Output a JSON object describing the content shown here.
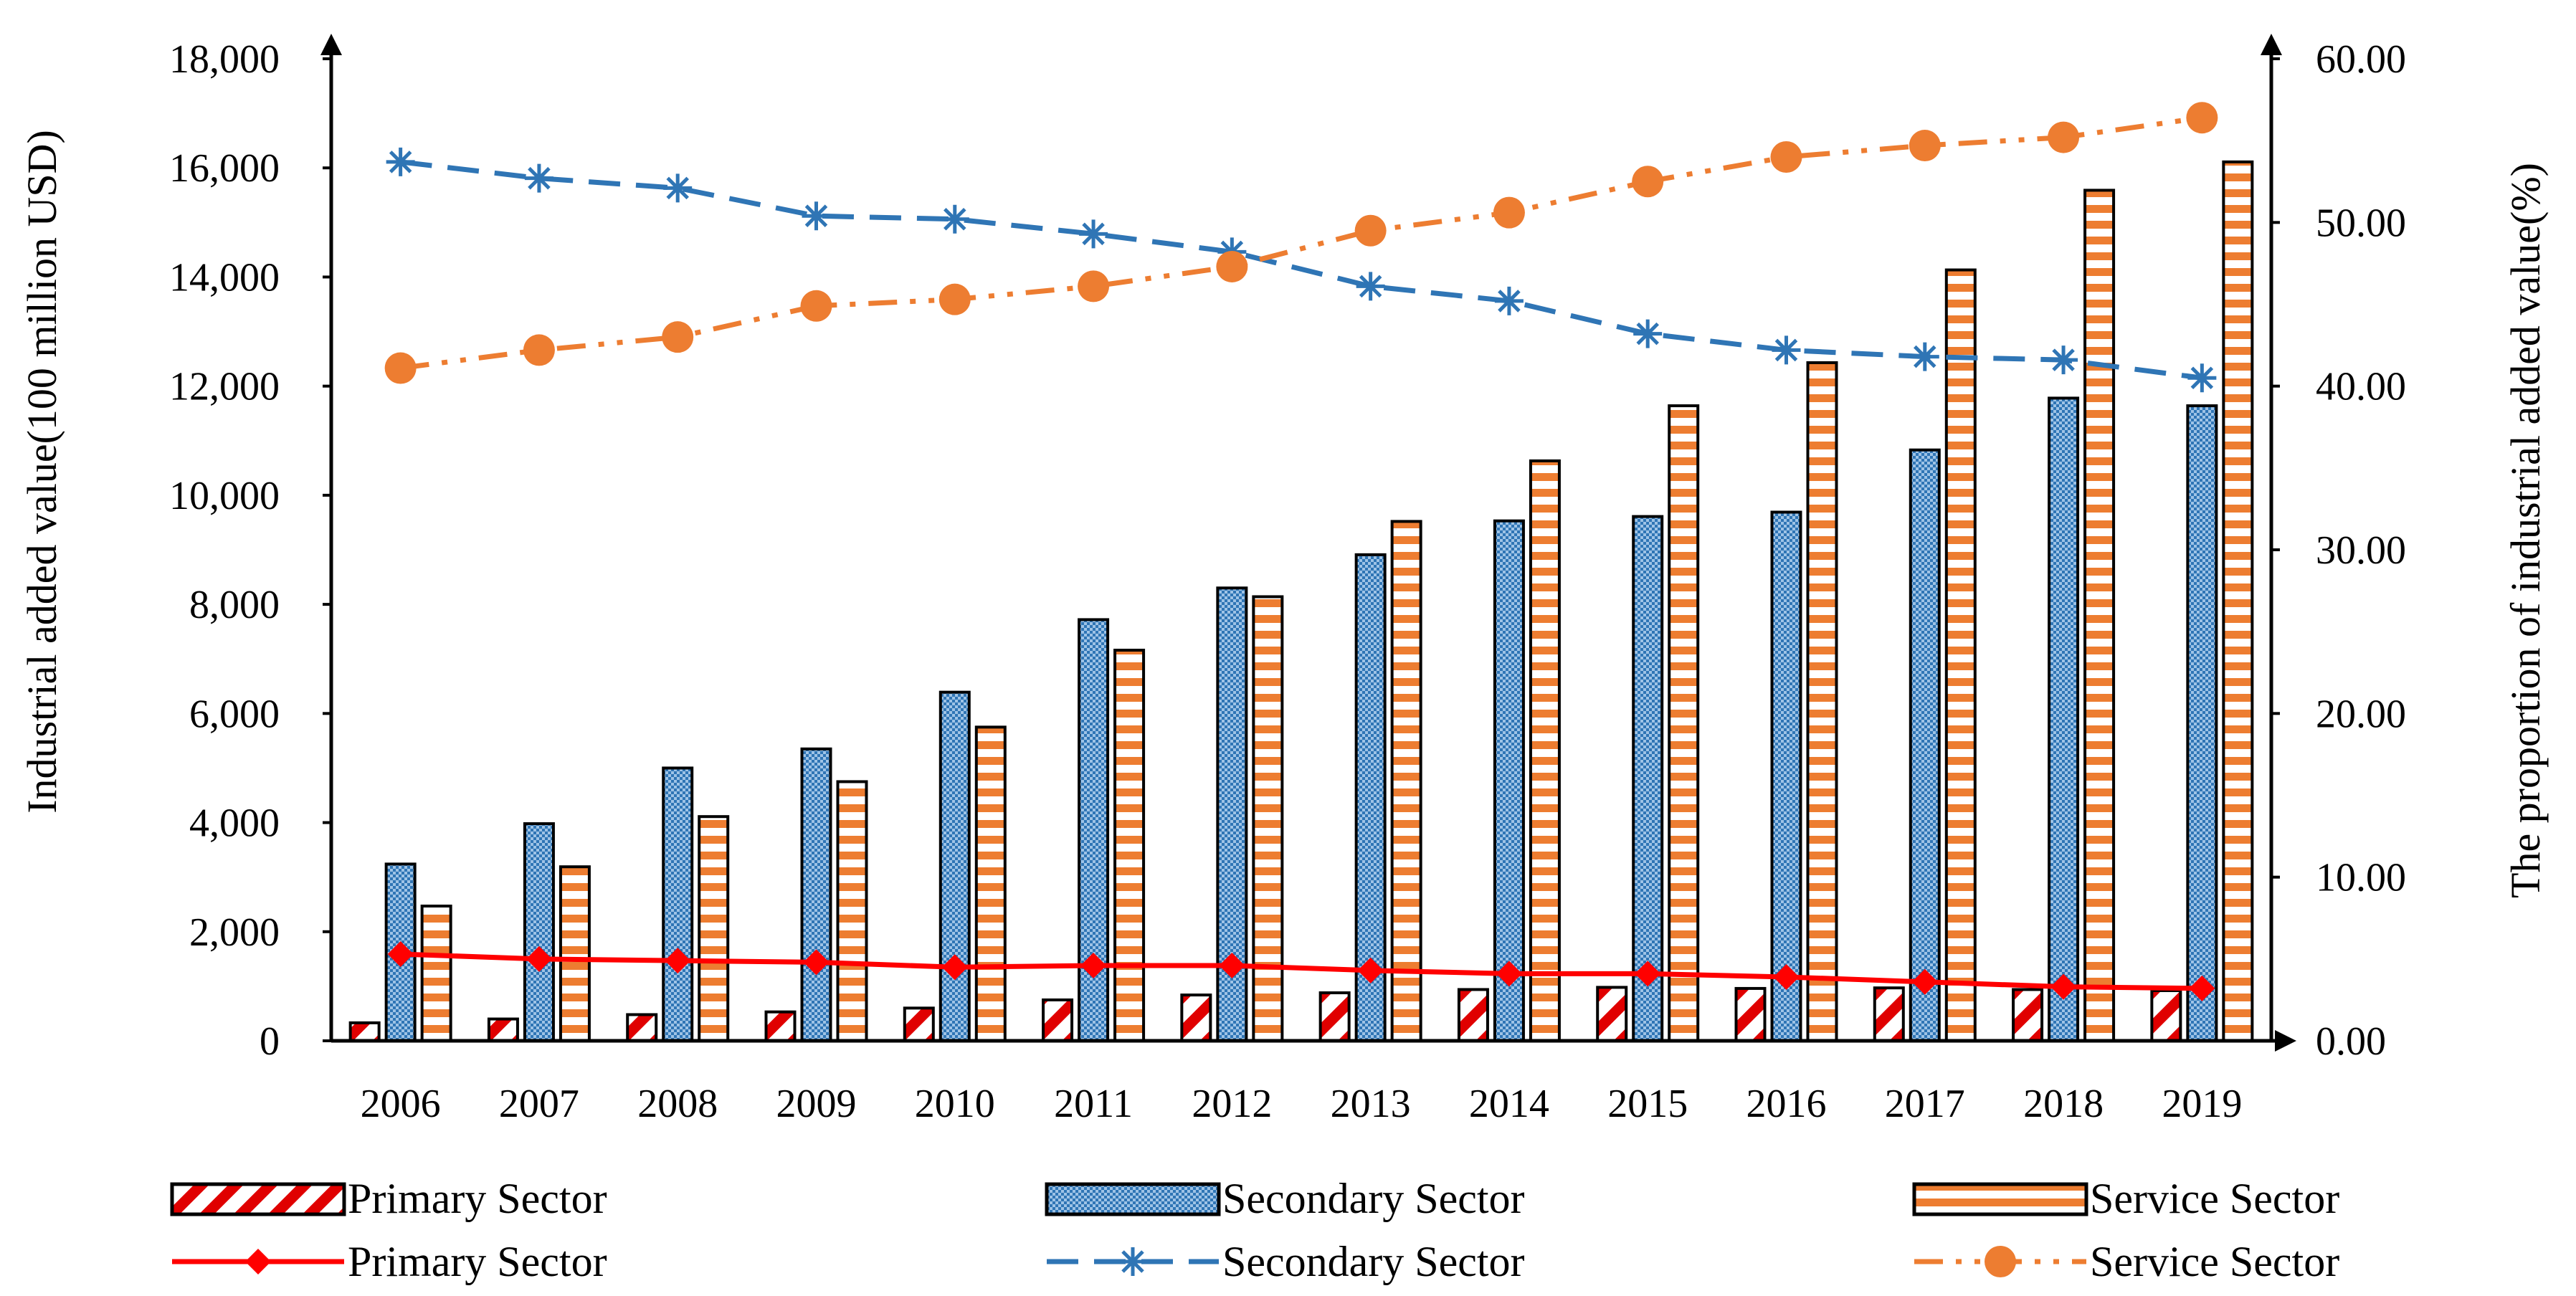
{
  "chart_data": {
    "type": "bar",
    "categories": [
      "2006",
      "2007",
      "2008",
      "2009",
      "2010",
      "2011",
      "2012",
      "2013",
      "2014",
      "2015",
      "2016",
      "2017",
      "2018",
      "2019"
    ],
    "series": [
      {
        "name": "Primary Sector",
        "kind": "bar",
        "axis": "left",
        "color": "#e00000",
        "pattern": "diagonal-stripes",
        "values": [
          330,
          400,
          480,
          530,
          600,
          750,
          840,
          880,
          940,
          980,
          960,
          970,
          940,
          920
        ]
      },
      {
        "name": "Secondary Sector",
        "kind": "bar",
        "axis": "left",
        "color": "#2f75b5",
        "pattern": "dots",
        "values": [
          3240,
          3980,
          5000,
          5350,
          6390,
          7720,
          8300,
          8910,
          9530,
          9610,
          9690,
          10830,
          11780,
          11640
        ]
      },
      {
        "name": "Service Sector",
        "kind": "bar",
        "axis": "left",
        "color": "#ed7d31",
        "pattern": "horizontal-stripes",
        "values": [
          2470,
          3190,
          4110,
          4750,
          5750,
          7160,
          8140,
          9520,
          10630,
          11640,
          12430,
          14130,
          15590,
          16110
        ]
      },
      {
        "name": "Primary Sector",
        "kind": "line",
        "axis": "right",
        "color": "#ff0000",
        "marker": "diamond",
        "dash": "solid",
        "values": [
          5.3,
          5.0,
          4.9,
          4.8,
          4.5,
          4.6,
          4.6,
          4.3,
          4.1,
          4.1,
          3.9,
          3.6,
          3.3,
          3.2
        ]
      },
      {
        "name": "Secondary Sector",
        "kind": "line",
        "axis": "right",
        "color": "#2f75b5",
        "marker": "asterisk",
        "dash": "dashed",
        "values": [
          53.7,
          52.7,
          52.1,
          50.4,
          50.2,
          49.3,
          48.2,
          46.1,
          45.2,
          43.2,
          42.2,
          41.8,
          41.6,
          40.5
        ]
      },
      {
        "name": "Service Sector",
        "kind": "line",
        "axis": "right",
        "color": "#ed7d31",
        "marker": "circle",
        "dash": "dash-dot-dot",
        "values": [
          41.1,
          42.2,
          43.0,
          44.9,
          45.3,
          46.1,
          47.3,
          49.5,
          50.6,
          52.5,
          54.0,
          54.7,
          55.2,
          56.4
        ]
      }
    ],
    "ylabel": "Industrial added value(100 million USD)",
    "y2label": "The proportion of industrial added value(%)",
    "ylim": [
      0,
      18000
    ],
    "y2lim": [
      0,
      60
    ],
    "yticks": [
      "0",
      "2,000",
      "4,000",
      "6,000",
      "8,000",
      "10,000",
      "12,000",
      "14,000",
      "16,000",
      "18,000"
    ],
    "y2ticks": [
      "0.00",
      "10.00",
      "20.00",
      "30.00",
      "40.00",
      "50.00",
      "60.00"
    ],
    "grid": false,
    "legend": "bottom"
  }
}
